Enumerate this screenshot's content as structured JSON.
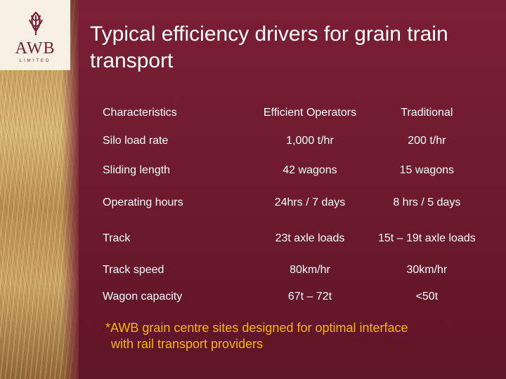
{
  "brand": {
    "name": "AWB",
    "sub": "LIMITED",
    "color": "#7a2036",
    "accent": "#f5b800"
  },
  "slide": {
    "title": "Typical efficiency drivers for grain train transport"
  },
  "table": {
    "headers": [
      "Characteristics",
      "Efficient Operators",
      "Traditional"
    ],
    "rows": [
      [
        "Silo load rate",
        "1,000 t/hr",
        "200 t/hr"
      ],
      [
        "Sliding length",
        "42 wagons",
        "15 wagons"
      ],
      [
        "Operating hours",
        "24hrs / 7 days",
        "8 hrs / 5 days"
      ],
      [
        "Track",
        "23t axle loads",
        "15t – 19t axle loads"
      ],
      [
        "Track speed",
        "80km/hr",
        "30km/hr"
      ],
      [
        "Wagon capacity",
        "67t – 72t",
        "<50t"
      ]
    ]
  },
  "footnote": {
    "line1": "*AWB grain centre sites designed for optimal interface",
    "line2": "with rail transport providers"
  }
}
